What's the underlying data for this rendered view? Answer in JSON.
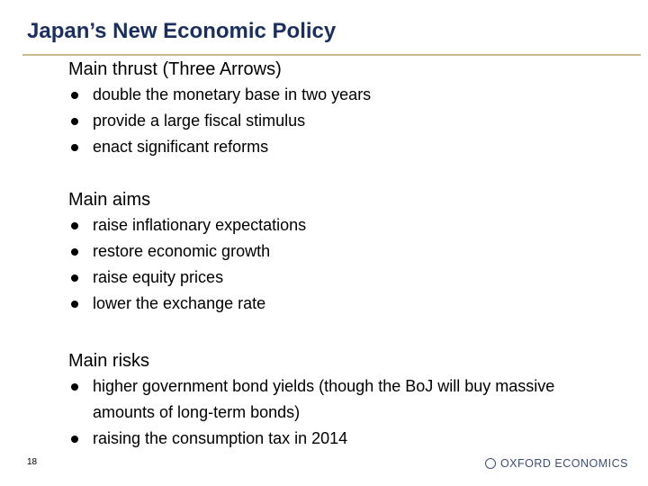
{
  "title": "Japan’s New Economic Policy",
  "sections": [
    {
      "heading": "Main thrust (Three Arrows)",
      "items": [
        "double the monetary base in two years",
        "provide a large fiscal stimulus",
        "enact significant reforms"
      ]
    },
    {
      "heading": "Main aims",
      "items": [
        "raise inflationary expectations",
        "restore economic growth",
        "raise equity prices",
        "lower the exchange rate"
      ]
    },
    {
      "heading": "Main risks",
      "items": [
        "higher government bond yields (though the BoJ will buy massive amounts of long-term bonds)",
        "raising the consumption tax in 2014"
      ]
    }
  ],
  "footer": {
    "page_number": "18",
    "logo": "OXFORD ECONOMICS"
  }
}
